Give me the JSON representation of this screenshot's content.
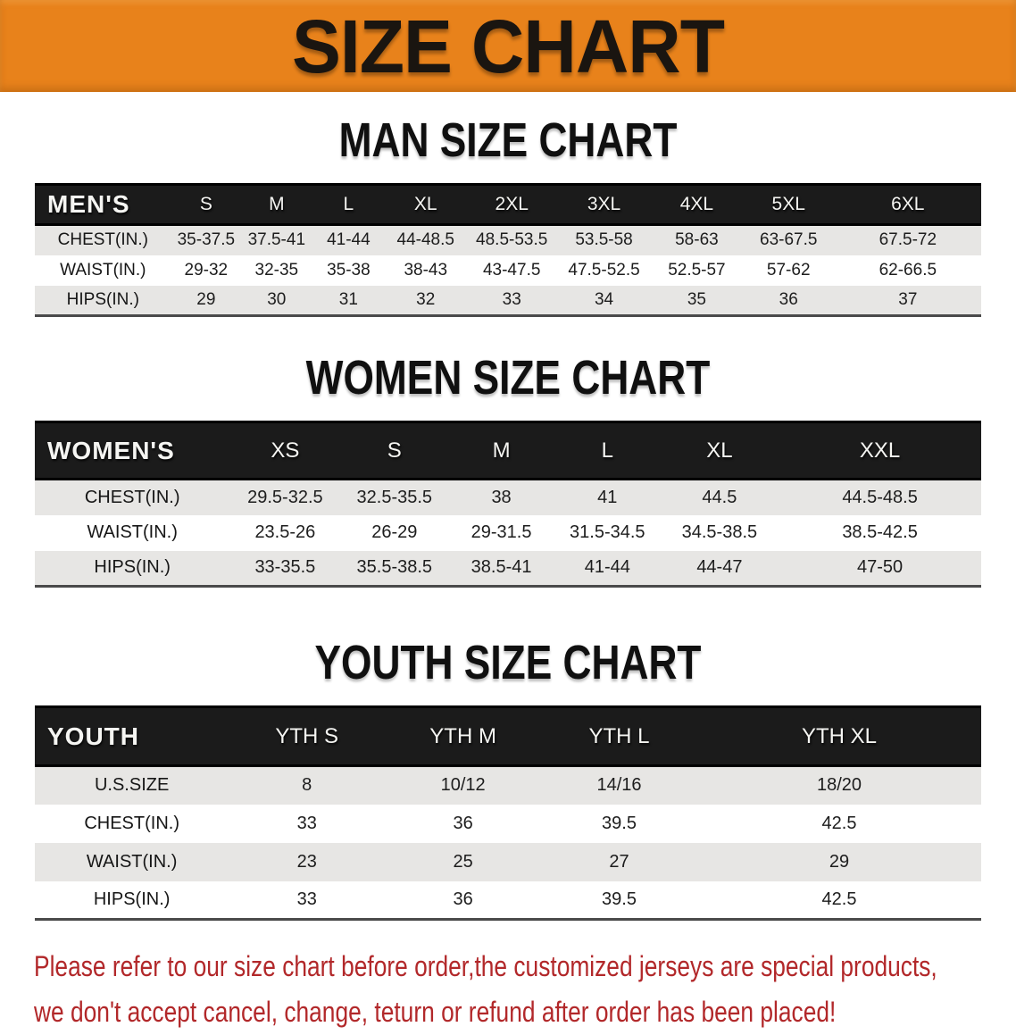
{
  "banner": {
    "title": "SIZE CHART"
  },
  "sections": [
    {
      "heading": "MAN SIZE CHART",
      "header_label": "MEN'S",
      "columns": [
        "S",
        "M",
        "L",
        "XL",
        "2XL",
        "3XL",
        "4XL",
        "5XL",
        "6XL"
      ],
      "rows": [
        {
          "label": "CHEST(IN.)",
          "values": [
            "35-37.5",
            "37.5-41",
            "41-44",
            "44-48.5",
            "48.5-53.5",
            "53.5-58",
            "58-63",
            "63-67.5",
            "67.5-72"
          ]
        },
        {
          "label": "WAIST(IN.)",
          "values": [
            "29-32",
            "32-35",
            "35-38",
            "38-43",
            "43-47.5",
            "47.5-52.5",
            "52.5-57",
            "57-62",
            "62-66.5"
          ]
        },
        {
          "label": "HIPS(IN.)",
          "values": [
            "29",
            "30",
            "31",
            "32",
            "33",
            "34",
            "35",
            "36",
            "37"
          ]
        }
      ]
    },
    {
      "heading": "WOMEN SIZE CHART",
      "header_label": "WOMEN'S",
      "columns": [
        "XS",
        "S",
        "M",
        "L",
        "XL",
        "XXL"
      ],
      "rows": [
        {
          "label": "CHEST(IN.)",
          "values": [
            "29.5-32.5",
            "32.5-35.5",
            "38",
            "41",
            "44.5",
            "44.5-48.5"
          ]
        },
        {
          "label": "WAIST(IN.)",
          "values": [
            "23.5-26",
            "26-29",
            "29-31.5",
            "31.5-34.5",
            "34.5-38.5",
            "38.5-42.5"
          ]
        },
        {
          "label": "HIPS(IN.)",
          "values": [
            "33-35.5",
            "35.5-38.5",
            "38.5-41",
            "41-44",
            "44-47",
            "47-50"
          ]
        }
      ]
    },
    {
      "heading": "YOUTH SIZE CHART",
      "header_label": "YOUTH",
      "columns": [
        "YTH S",
        "YTH M",
        "YTH L",
        "YTH XL"
      ],
      "rows": [
        {
          "label": "U.S.SIZE",
          "values": [
            "8",
            "10/12",
            "14/16",
            "18/20"
          ]
        },
        {
          "label": "CHEST(IN.)",
          "values": [
            "33",
            "36",
            "39.5",
            "42.5"
          ]
        },
        {
          "label": "WAIST(IN.)",
          "values": [
            "23",
            "25",
            "27",
            "29"
          ]
        },
        {
          "label": "HIPS(IN.)",
          "values": [
            "33",
            "36",
            "39.5",
            "42.5"
          ]
        }
      ]
    }
  ],
  "footer": {
    "line1": "Please refer to our size chart before order,the customized jerseys are special products,",
    "line2": "we don't accept cancel, change, teturn or refund after order has been placed!"
  },
  "colors": {
    "banner_orange": "#E8821B",
    "header_bar_black": "#1b1b1b",
    "row_gray": "#E7E6E4",
    "footer_red": "#B2282A"
  }
}
